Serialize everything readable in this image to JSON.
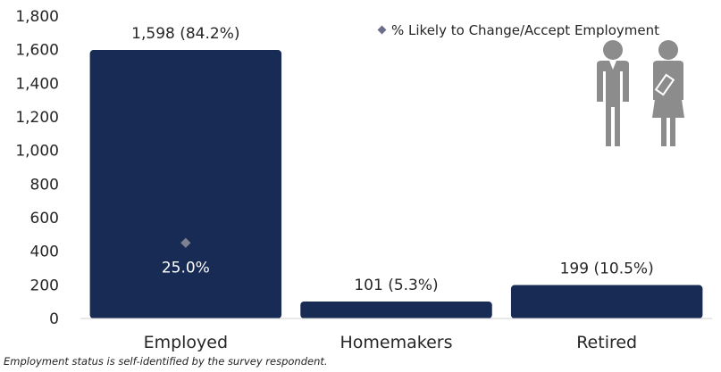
{
  "chart_data": {
    "type": "bar",
    "categories": [
      "Employed",
      "Homemakers",
      "Retired"
    ],
    "values": [
      1598,
      101,
      199
    ],
    "data_labels": [
      "1,598 (84.2%)",
      "101 (5.3%)",
      "199 (10.5%)"
    ],
    "bar_color": "#172b54",
    "ylim": [
      0,
      1800
    ],
    "yticks": [
      0,
      200,
      400,
      600,
      800,
      1000,
      1200,
      1400,
      1600,
      1800
    ],
    "ytick_labels": [
      "0",
      "200",
      "400",
      "600",
      "800",
      "1,000",
      "1,200",
      "1,400",
      "1,600",
      "1,800"
    ],
    "grid": false,
    "legend_position": "top-right",
    "series": [
      {
        "name": "% Likely to Change/Accept Employment",
        "type": "scatter",
        "marker": "diamond",
        "color": "#7f8090",
        "points": [
          {
            "category": "Employed",
            "value": 450,
            "label": "25.0%"
          }
        ]
      }
    ]
  },
  "legend": {
    "marker_color": "#6b6f8c",
    "label": "% Likely to Change/Accept Employment"
  },
  "icons": [
    "man-icon",
    "woman-icon"
  ],
  "footnote": "Employment status is self-identified by the survey respondent."
}
